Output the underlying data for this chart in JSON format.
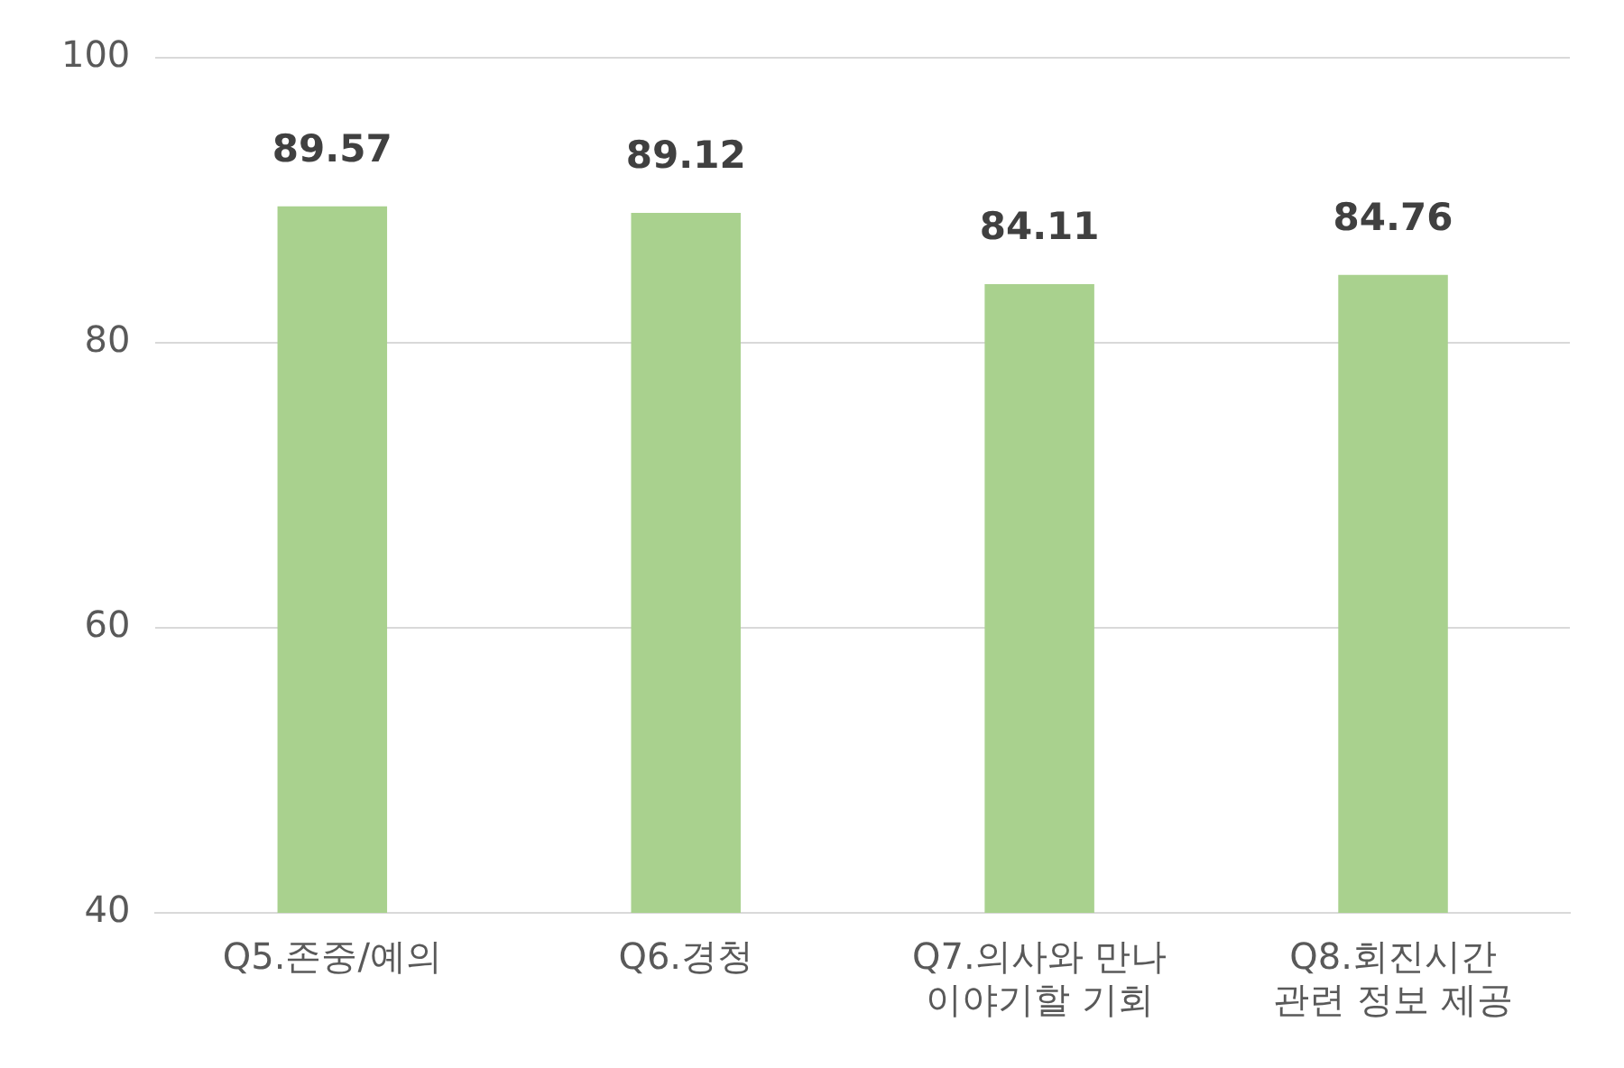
{
  "chart_data": {
    "type": "bar",
    "categories": [
      "Q5.존중/예의",
      "Q6.경청",
      "Q7.의사와 만나\n이야기할 기회",
      "Q8.회진시간\n관련 정보 제공"
    ],
    "values": [
      89.57,
      89.12,
      84.11,
      84.76
    ],
    "color": "#a9d18e",
    "ylim": [
      40,
      100
    ],
    "yticks": [
      40,
      60,
      80,
      100
    ],
    "grid": "y",
    "data_labels": true,
    "legend": false
  }
}
